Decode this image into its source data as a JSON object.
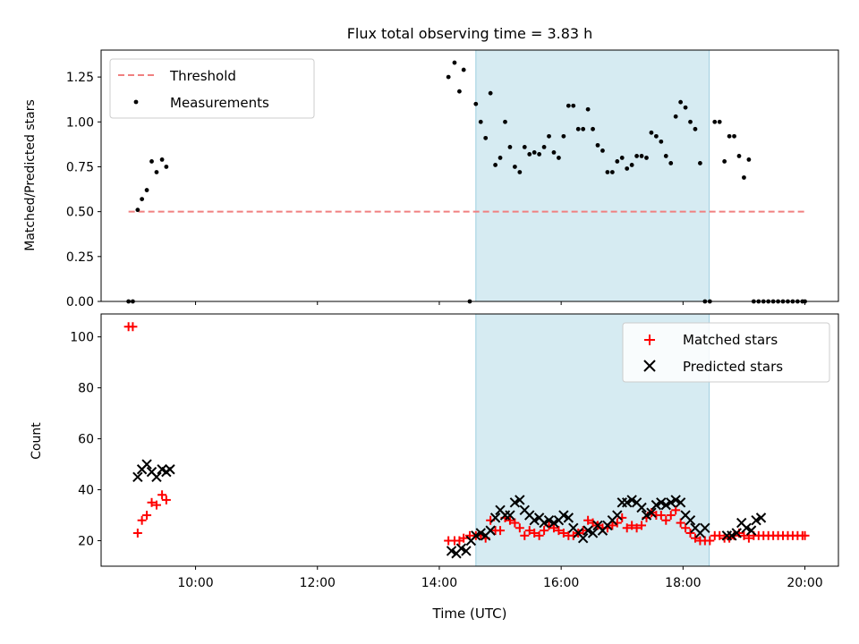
{
  "chart_data": [
    {
      "type": "scatter",
      "title": "Flux total observing time = 3.83 h",
      "ylabel": "Matched/Predicted stars",
      "ylim": [
        0,
        1.4
      ],
      "xlim": [
        8.45,
        20.55
      ],
      "yticks": [
        0,
        0.25,
        0.5,
        0.75,
        1.0,
        1.25
      ],
      "ytick_labels": [
        "0.00",
        "0.25",
        "0.50",
        "0.75",
        "1.00",
        "1.25"
      ],
      "legend": {
        "position": "top-left"
      },
      "shaded_interval": {
        "x": [
          14.6,
          18.43
        ],
        "color": "#add8e6"
      },
      "threshold": {
        "name": "Threshold",
        "y": 0.5,
        "x": [
          8.9,
          20.0
        ],
        "color": "#f08080",
        "style": "dashed"
      },
      "series": [
        {
          "name": "Measurements",
          "color": "#000000",
          "marker": "dot",
          "x": [
            8.9,
            8.97,
            9.05,
            9.12,
            9.2,
            9.28,
            9.36,
            9.45,
            9.52,
            9.6,
            14.15,
            14.25,
            14.33,
            14.4,
            14.5,
            14.6,
            14.68,
            14.76,
            14.84,
            14.92,
            15.0,
            15.08,
            15.16,
            15.24,
            15.32,
            15.4,
            15.48,
            15.56,
            15.64,
            15.72,
            15.8,
            15.88,
            15.96,
            16.04,
            16.12,
            16.2,
            16.28,
            16.36,
            16.44,
            16.52,
            16.6,
            16.68,
            16.76,
            16.84,
            16.92,
            17.0,
            17.08,
            17.16,
            17.24,
            17.32,
            17.4,
            17.48,
            17.56,
            17.64,
            17.72,
            17.8,
            17.88,
            17.96,
            18.04,
            18.12,
            18.2,
            18.28,
            18.36,
            18.44,
            18.52,
            18.6,
            18.68,
            18.76,
            18.84,
            18.92,
            19.0,
            19.08,
            19.16,
            19.24,
            19.32,
            19.4,
            19.48,
            19.56,
            19.64,
            19.72,
            19.8,
            19.88,
            19.96,
            20.0
          ],
          "y": [
            0.0,
            0.0,
            0.51,
            0.57,
            0.62,
            0.78,
            0.72,
            0.79,
            0.75,
            null,
            1.25,
            1.33,
            1.17,
            1.29,
            0.0,
            1.1,
            1.0,
            0.91,
            1.16,
            0.76,
            0.8,
            1.0,
            0.86,
            0.75,
            0.72,
            0.86,
            0.82,
            0.83,
            0.82,
            0.86,
            0.92,
            0.83,
            0.8,
            0.92,
            1.09,
            1.09,
            0.96,
            0.96,
            1.07,
            0.96,
            0.87,
            0.84,
            0.72,
            0.72,
            0.78,
            0.8,
            0.74,
            0.76,
            0.81,
            0.81,
            0.8,
            0.94,
            0.92,
            0.89,
            0.81,
            0.77,
            1.03,
            1.11,
            1.08,
            1.0,
            0.96,
            0.77,
            0.0,
            0.0,
            1.0,
            1.0,
            0.78,
            0.92,
            0.92,
            0.81,
            0.69,
            0.79,
            0.0,
            0.0,
            0.0,
            0.0,
            0.0,
            0.0,
            0.0,
            0.0,
            0.0,
            0.0,
            0.0,
            0.0
          ]
        }
      ]
    },
    {
      "type": "scatter",
      "xlabel": "Time (UTC)",
      "ylabel": "Count",
      "ylim": [
        10,
        109
      ],
      "xlim": [
        8.45,
        20.55
      ],
      "yticks": [
        20,
        40,
        60,
        80,
        100
      ],
      "ytick_labels": [
        "20",
        "40",
        "60",
        "80",
        "100"
      ],
      "xticks": [
        10,
        12,
        14,
        16,
        18,
        20
      ],
      "xtick_labels": [
        "10:00",
        "12:00",
        "14:00",
        "16:00",
        "18:00",
        "20:00"
      ],
      "legend": {
        "position": "top-right"
      },
      "shaded_interval": {
        "x": [
          14.6,
          18.43
        ],
        "color": "#add8e6"
      },
      "series": [
        {
          "name": "Matched stars",
          "color": "#ff0000",
          "marker": "plus",
          "x": [
            8.9,
            8.97,
            9.05,
            9.12,
            9.2,
            9.28,
            9.36,
            9.45,
            9.52,
            14.15,
            14.25,
            14.33,
            14.4,
            14.5,
            14.6,
            14.68,
            14.76,
            14.84,
            14.92,
            15.0,
            15.08,
            15.16,
            15.24,
            15.32,
            15.4,
            15.48,
            15.56,
            15.64,
            15.72,
            15.8,
            15.88,
            15.96,
            16.04,
            16.12,
            16.2,
            16.28,
            16.36,
            16.44,
            16.52,
            16.6,
            16.68,
            16.76,
            16.84,
            16.92,
            17.0,
            17.08,
            17.16,
            17.24,
            17.32,
            17.4,
            17.48,
            17.56,
            17.64,
            17.72,
            17.8,
            17.88,
            17.96,
            18.04,
            18.12,
            18.2,
            18.28,
            18.36,
            18.44,
            18.52,
            18.6,
            18.68,
            18.76,
            18.84,
            18.92,
            19.0,
            19.08,
            19.16,
            19.24,
            19.32,
            19.4,
            19.48,
            19.56,
            19.64,
            19.72,
            19.8,
            19.88,
            19.96,
            20.0
          ],
          "y": [
            104,
            104,
            23,
            28,
            30,
            35,
            34,
            38,
            36,
            20,
            20,
            20,
            21,
            22,
            22,
            22,
            21,
            28,
            24,
            24,
            29,
            28,
            27,
            25,
            22,
            24,
            23,
            22,
            24,
            26,
            25,
            24,
            23,
            22,
            22,
            23,
            24,
            28,
            27,
            26,
            25,
            25,
            26,
            27,
            29,
            25,
            26,
            25,
            26,
            29,
            31,
            30,
            30,
            28,
            30,
            32,
            27,
            25,
            23,
            21,
            20,
            20,
            20,
            22,
            22,
            21,
            21,
            22,
            23,
            22,
            21,
            22,
            22,
            22,
            22,
            22,
            22,
            22,
            22,
            22,
            22,
            22,
            22
          ]
        },
        {
          "name": "Predicted stars",
          "color": "#000000",
          "marker": "x",
          "x": [
            9.05,
            9.12,
            9.2,
            9.28,
            9.36,
            9.45,
            9.52,
            9.58,
            14.2,
            14.28,
            14.36,
            14.44,
            14.52,
            14.6,
            14.68,
            14.76,
            14.84,
            14.92,
            15.0,
            15.08,
            15.16,
            15.24,
            15.32,
            15.4,
            15.48,
            15.56,
            15.64,
            15.72,
            15.8,
            15.88,
            15.96,
            16.04,
            16.12,
            16.2,
            16.28,
            16.36,
            16.44,
            16.52,
            16.6,
            16.68,
            16.76,
            16.84,
            16.92,
            17.0,
            17.08,
            17.16,
            17.24,
            17.32,
            17.4,
            17.48,
            17.56,
            17.64,
            17.72,
            17.8,
            17.88,
            17.96,
            18.04,
            18.12,
            18.2,
            18.28,
            18.36,
            18.72,
            18.8,
            18.88,
            18.96,
            19.04,
            19.12,
            19.2,
            19.28
          ],
          "y": [
            45,
            48,
            50,
            47,
            45,
            48,
            47,
            48,
            16,
            15,
            17,
            16,
            20,
            22,
            23,
            22,
            24,
            29,
            32,
            30,
            30,
            35,
            36,
            32,
            30,
            28,
            29,
            27,
            28,
            27,
            28,
            30,
            29,
            25,
            23,
            21,
            24,
            23,
            26,
            24,
            26,
            28,
            30,
            35,
            35,
            36,
            35,
            33,
            30,
            31,
            34,
            35,
            34,
            35,
            36,
            35,
            30,
            28,
            25,
            23,
            25,
            22,
            22,
            23,
            27,
            25,
            24,
            28,
            29
          ]
        }
      ]
    }
  ]
}
